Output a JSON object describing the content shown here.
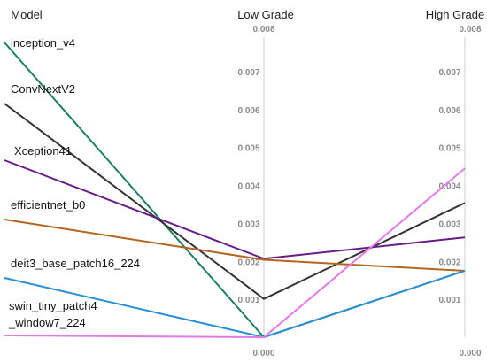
{
  "chart_data": {
    "type": "parallel-coordinates",
    "axes": [
      "Model",
      "Low Grade",
      "High Grade"
    ],
    "numeric_range": [
      0,
      0.008
    ],
    "ticks": [
      "0.000",
      "0.001",
      "0.002",
      "0.003",
      "0.004",
      "0.005",
      "0.006",
      "0.007",
      "0.008"
    ],
    "series": [
      {
        "name": "inception_v4",
        "color": "#1a7f64",
        "low_grade": 0.0,
        "high_grade": 0.00175
      },
      {
        "name": "ConvNextV2",
        "color": "#333333",
        "low_grade": 0.00101,
        "high_grade": 0.00354
      },
      {
        "name": "Xception41",
        "color": "#6a1b8a",
        "low_grade": 0.00207,
        "high_grade": 0.00263
      },
      {
        "name": "efficientnet_b0",
        "color": "#b5651d",
        "low_grade": 0.00204,
        "high_grade": 0.00175
      },
      {
        "name": "deit3_base_patch16_224",
        "color": "#2a8fd6",
        "low_grade": 0.0,
        "high_grade": 0.00175
      },
      {
        "name": "swin_tiny_patch4_window7_224",
        "label_lines": [
          "swin_tiny_patch4",
          "_window7_224"
        ],
        "color": "#e07ae8",
        "low_grade": 0.0,
        "high_grade": 0.00445
      }
    ]
  }
}
